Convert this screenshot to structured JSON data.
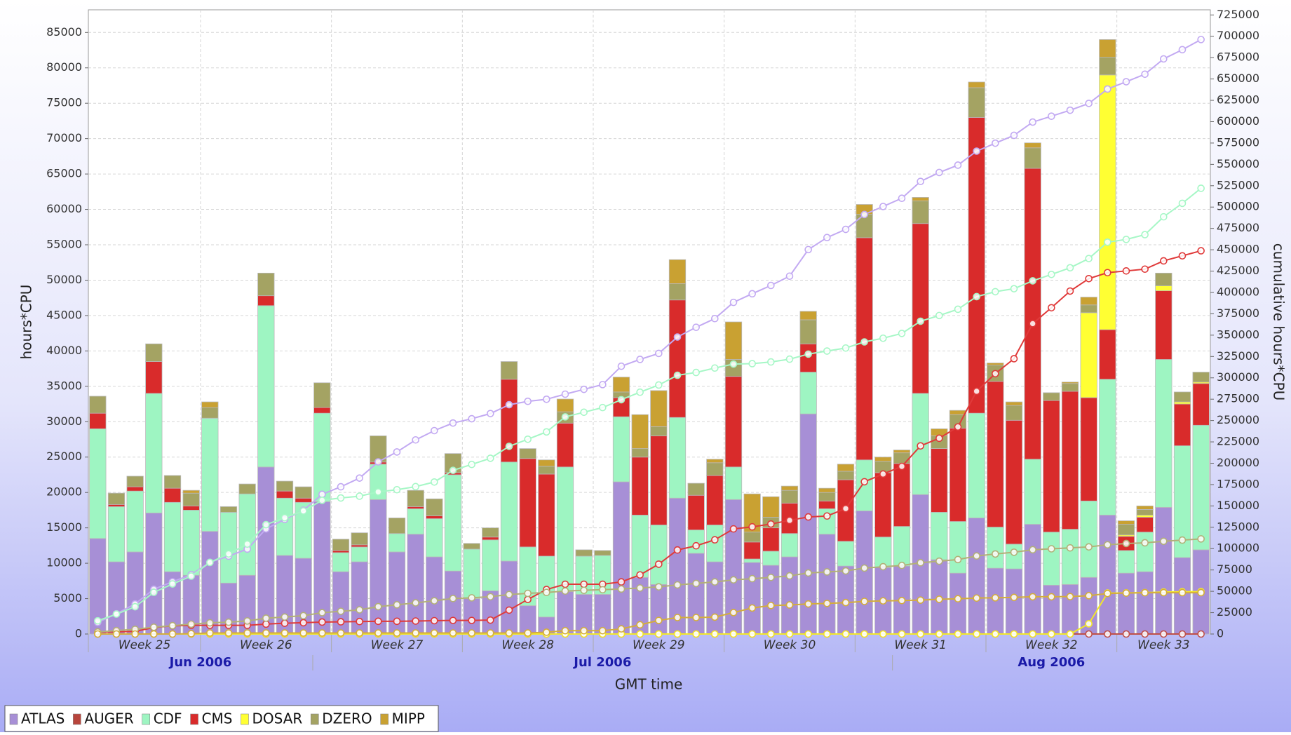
{
  "chart_data": {
    "type": "bar",
    "stacked": true,
    "y_label": "hours*CPU",
    "y2_label": "cumulative hours*CPU",
    "x_label": "GMT time",
    "ylim": [
      0,
      88200
    ],
    "yticks": [
      0,
      5000,
      10000,
      15000,
      20000,
      25000,
      30000,
      35000,
      40000,
      45000,
      50000,
      55000,
      60000,
      65000,
      70000,
      75000,
      80000,
      85000
    ],
    "y2lim": [
      0,
      731000
    ],
    "y2ticks": [
      0,
      25000,
      50000,
      75000,
      100000,
      125000,
      150000,
      175000,
      200000,
      225000,
      250000,
      275000,
      300000,
      325000,
      350000,
      375000,
      400000,
      425000,
      450000,
      475000,
      500000,
      525000,
      550000,
      575000,
      600000,
      625000,
      650000,
      675000,
      700000,
      725000
    ],
    "grid": true,
    "legend": "bottom-left",
    "categories": [
      null,
      null,
      null,
      null,
      null,
      null,
      null,
      null,
      null,
      null,
      null,
      null,
      null,
      null,
      null,
      null,
      null,
      null,
      null,
      null,
      null,
      null,
      null,
      null,
      null,
      null,
      null,
      null,
      null,
      null,
      null,
      null,
      null,
      null,
      null,
      null,
      null,
      null,
      null,
      null,
      null,
      null,
      null,
      null,
      null,
      null,
      null,
      null,
      null,
      null,
      null,
      null,
      null,
      null,
      null,
      null,
      null,
      null,
      null,
      null
    ],
    "weeks": [
      {
        "label": "Week 25",
        "range": [
          0,
          6
        ]
      },
      {
        "label": "Week 26",
        "range": [
          6,
          13
        ]
      },
      {
        "label": "Week 27",
        "range": [
          13,
          20
        ]
      },
      {
        "label": "Week 28",
        "range": [
          20,
          27
        ]
      },
      {
        "label": "Week 29",
        "range": [
          27,
          34
        ]
      },
      {
        "label": "Week 30",
        "range": [
          34,
          41
        ]
      },
      {
        "label": "Week 31",
        "range": [
          41,
          48
        ]
      },
      {
        "label": "Week 32",
        "range": [
          48,
          55
        ]
      },
      {
        "label": "Week 33",
        "range": [
          55,
          60
        ]
      }
    ],
    "months": [
      {
        "label": "Jun 2006",
        "range": [
          0,
          12
        ]
      },
      {
        "label": "Jul 2006",
        "range": [
          12,
          43
        ]
      },
      {
        "label": "Aug 2006",
        "range": [
          43,
          60
        ]
      }
    ],
    "series": [
      {
        "name": "ATLAS",
        "color": "#a78fd6",
        "line_color": "#c2a9f2",
        "values": [
          13500,
          10200,
          11600,
          17100,
          8800,
          8300,
          14500,
          7200,
          8300,
          23600,
          11100,
          10700,
          18700,
          8800,
          10200,
          19000,
          11600,
          14100,
          10900,
          8900,
          5000,
          6100,
          10300,
          4000,
          2400,
          6000,
          5600,
          5600,
          21500,
          8000,
          7000,
          19200,
          11400,
          10200,
          19000,
          10100,
          9700,
          10900,
          31100,
          14100,
          9600,
          17400,
          9400,
          9600,
          19700,
          10500,
          8600,
          16400,
          9300,
          9200,
          15500,
          6900,
          7000,
          8000,
          16800,
          8600,
          8800,
          17900,
          10800,
          11900
        ],
        "cumulative": [
          13500,
          23700,
          35300,
          52400,
          61200,
          69500,
          84000,
          91200,
          99500,
          123100,
          134200,
          144900,
          163600,
          172400,
          182600,
          201600,
          213200,
          227300,
          238200,
          247100,
          252100,
          258200,
          268500,
          272500,
          274900,
          280900,
          286500,
          292100,
          313600,
          321600,
          328600,
          347800,
          359200,
          369400,
          388400,
          398500,
          408200,
          419100,
          450200,
          464300,
          473900,
          491300,
          500700,
          510300,
          530000,
          540500,
          549100,
          565500,
          574800,
          584000,
          599500,
          606400,
          613400,
          621400,
          638200,
          646800,
          655600,
          673500,
          684300,
          696200
        ]
      },
      {
        "name": "AUGER",
        "color": "#b8453c",
        "line_color": "#c05048",
        "values": [
          0,
          0,
          0,
          0,
          0,
          0,
          0,
          0,
          0,
          0,
          0,
          0,
          0,
          0,
          0,
          0,
          0,
          0,
          0,
          0,
          0,
          0,
          0,
          0,
          0,
          0,
          0,
          0,
          0,
          0,
          0,
          0,
          0,
          0,
          0,
          0,
          0,
          0,
          0,
          0,
          0,
          0,
          0,
          0,
          0,
          0,
          0,
          0,
          0,
          0,
          0,
          0,
          0,
          0,
          0,
          0,
          0,
          0,
          0,
          0
        ],
        "cumulative": [
          0,
          0,
          0,
          0,
          0,
          0,
          0,
          0,
          0,
          0,
          0,
          0,
          0,
          0,
          0,
          0,
          0,
          0,
          0,
          0,
          0,
          0,
          0,
          0,
          0,
          0,
          0,
          0,
          0,
          0,
          0,
          0,
          0,
          0,
          0,
          0,
          0,
          0,
          0,
          0,
          0,
          0,
          0,
          0,
          0,
          0,
          0,
          0,
          0,
          0,
          0,
          0,
          0,
          0,
          0,
          0,
          0,
          0,
          0,
          0
        ]
      },
      {
        "name": "CDF",
        "color": "#9ef5c2",
        "line_color": "#a6f7c6",
        "values": [
          15500,
          7800,
          8600,
          16900,
          9800,
          9200,
          16000,
          10000,
          11500,
          22800,
          8100,
          7900,
          12500,
          2700,
          2100,
          5000,
          2600,
          3600,
          5400,
          13600,
          7000,
          7200,
          14000,
          8300,
          8600,
          17600,
          5400,
          5500,
          9200,
          8800,
          8400,
          11400,
          3300,
          5200,
          4600,
          500,
          2000,
          3300,
          5900,
          3600,
          3500,
          7200,
          4300,
          5600,
          14300,
          6700,
          7300,
          14800,
          5800,
          3500,
          9200,
          7500,
          7800,
          10800,
          19200,
          3200,
          5600,
          20900,
          15800,
          17600
        ],
        "cumulative": [
          15500,
          23300,
          31900,
          48800,
          58600,
          67800,
          83800,
          93800,
          105300,
          128100,
          136200,
          144100,
          156600,
          159300,
          161400,
          166400,
          169000,
          172600,
          178000,
          191600,
          198600,
          205800,
          219800,
          228100,
          236700,
          254300,
          259700,
          265200,
          274400,
          283200,
          291600,
          303000,
          306300,
          311500,
          316100,
          316600,
          318600,
          321900,
          327800,
          331400,
          334900,
          342100,
          346400,
          352000,
          366300,
          373000,
          380300,
          395100,
          400900,
          404400,
          413600,
          421100,
          428900,
          439700,
          458900,
          462100,
          467700,
          488600,
          504400,
          522000
        ]
      },
      {
        "name": "CMS",
        "color": "#d92b2b",
        "line_color": "#e03a3a",
        "values": [
          2200,
          300,
          600,
          4500,
          2000,
          600,
          0,
          0,
          0,
          1400,
          1000,
          600,
          800,
          300,
          300,
          300,
          0,
          300,
          400,
          300,
          0,
          400,
          11700,
          12500,
          11600,
          6200,
          0,
          0,
          2700,
          8200,
          12600,
          16600,
          4900,
          7000,
          12800,
          2400,
          3300,
          4300,
          4000,
          1100,
          8700,
          31400,
          9100,
          8900,
          24000,
          9000,
          13200,
          41800,
          20600,
          17500,
          41100,
          18600,
          19500,
          14600,
          7000,
          2000,
          2100,
          9700,
          5900,
          5900
        ],
        "cumulative": [
          2200,
          2500,
          3100,
          7600,
          9600,
          10200,
          10200,
          10200,
          10200,
          11600,
          12600,
          13200,
          14000,
          14300,
          14600,
          14900,
          14900,
          15200,
          15600,
          15900,
          15900,
          16300,
          28000,
          40500,
          52100,
          58300,
          58300,
          58300,
          61000,
          69200,
          81800,
          98400,
          103300,
          110300,
          123100,
          125500,
          128800,
          133100,
          137100,
          138200,
          146900,
          178300,
          187400,
          196300,
          220300,
          229300,
          242500,
          284300,
          304900,
          322400,
          363500,
          382100,
          401600,
          416200,
          423200,
          425200,
          427300,
          437000,
          442900,
          448800
        ]
      },
      {
        "name": "DOSAR",
        "color": "#ffff33",
        "line_color": "#f2e62a",
        "values": [
          0,
          0,
          0,
          0,
          0,
          0,
          0,
          0,
          0,
          0,
          0,
          0,
          0,
          0,
          0,
          0,
          0,
          0,
          0,
          0,
          0,
          0,
          0,
          0,
          0,
          0,
          0,
          0,
          0,
          0,
          0,
          0,
          0,
          0,
          0,
          0,
          0,
          0,
          0,
          0,
          0,
          0,
          0,
          0,
          0,
          0,
          0,
          0,
          0,
          0,
          0,
          0,
          0,
          12000,
          36000,
          200,
          300,
          700,
          300,
          200
        ],
        "cumulative": [
          0,
          0,
          0,
          0,
          0,
          0,
          0,
          0,
          0,
          0,
          0,
          0,
          0,
          0,
          0,
          0,
          0,
          0,
          0,
          0,
          0,
          0,
          0,
          0,
          0,
          0,
          0,
          0,
          0,
          0,
          0,
          0,
          0,
          0,
          0,
          0,
          0,
          0,
          0,
          0,
          0,
          0,
          0,
          0,
          0,
          0,
          0,
          0,
          0,
          0,
          0,
          0,
          0,
          12000,
          48000,
          48200,
          48500,
          49200,
          49500,
          49700
        ]
      },
      {
        "name": "DZERO",
        "color": "#a4a363",
        "line_color": "#b3b078",
        "values": [
          2400,
          1600,
          1500,
          2500,
          1800,
          1800,
          1500,
          800,
          1400,
          3200,
          1400,
          1600,
          3500,
          1600,
          1700,
          3700,
          2200,
          2300,
          2400,
          2700,
          800,
          1300,
          2500,
          1400,
          1100,
          1600,
          900,
          700,
          800,
          1200,
          1300,
          2300,
          1700,
          1800,
          2400,
          1400,
          1500,
          1800,
          3400,
          1200,
          1200,
          3300,
          1600,
          1500,
          3200,
          1800,
          1900,
          4200,
          2300,
          2100,
          2900,
          1100,
          1100,
          1100,
          2500,
          1500,
          800,
          1800,
          1400,
          1400
        ],
        "cumulative": [
          2400,
          4000,
          5500,
          8000,
          9800,
          11600,
          13100,
          13900,
          15300,
          18500,
          19900,
          21500,
          25000,
          26600,
          28300,
          32000,
          34200,
          36500,
          38900,
          41600,
          42400,
          43700,
          46200,
          47600,
          48700,
          50300,
          51200,
          51900,
          52700,
          53900,
          55200,
          57500,
          59200,
          61000,
          63400,
          64800,
          66300,
          68100,
          71500,
          72700,
          73900,
          77200,
          78800,
          80300,
          83500,
          85300,
          87200,
          91400,
          93700,
          95800,
          98700,
          99800,
          100900,
          102000,
          104500,
          106000,
          106800,
          108600,
          110000,
          111400
        ]
      },
      {
        "name": "MIPP",
        "color": "#c9a132",
        "line_color": "#d4ad3c",
        "values": [
          0,
          0,
          0,
          0,
          0,
          400,
          800,
          0,
          0,
          0,
          0,
          0,
          0,
          0,
          0,
          0,
          0,
          0,
          0,
          0,
          0,
          0,
          0,
          0,
          900,
          1800,
          0,
          0,
          2100,
          4800,
          5100,
          3400,
          0,
          500,
          5300,
          5400,
          2900,
          600,
          1200,
          600,
          1000,
          1400,
          600,
          400,
          500,
          1000,
          600,
          800,
          300,
          500,
          700,
          0,
          200,
          1100,
          2500,
          500,
          500,
          0,
          0,
          0
        ],
        "cumulative": [
          0,
          0,
          0,
          0,
          0,
          400,
          1200,
          1200,
          1200,
          1200,
          1200,
          1200,
          1200,
          1200,
          1200,
          1200,
          1200,
          1200,
          1200,
          1200,
          1200,
          1200,
          1200,
          1200,
          2100,
          3900,
          3900,
          3900,
          6000,
          10800,
          15900,
          19300,
          19300,
          19800,
          25100,
          30500,
          33400,
          34000,
          35200,
          35800,
          36800,
          38200,
          38800,
          39200,
          39700,
          40700,
          41300,
          42100,
          42400,
          42900,
          43600,
          43600,
          43800,
          44900,
          47400,
          47900,
          48400,
          48400,
          48400,
          48400
        ]
      }
    ]
  }
}
